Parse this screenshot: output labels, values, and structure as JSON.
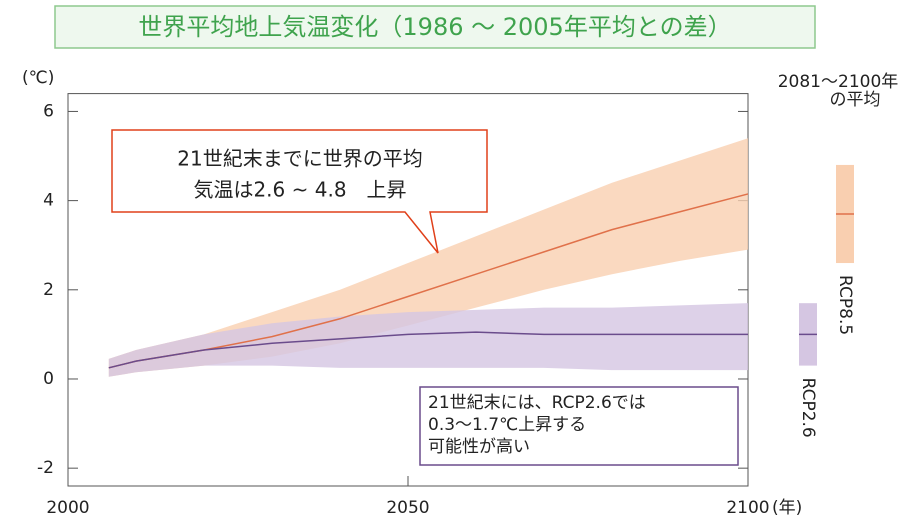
{
  "chart_data": {
    "type": "line",
    "title": "世界平均地上気温変化（1986 ～ 2005年平均との差）",
    "y_label": "(℃)",
    "x_label": "(年)",
    "xlim": [
      2000,
      2100
    ],
    "xticks": [
      2000,
      2050,
      2100
    ],
    "ylim": [
      -2.4,
      6.4
    ],
    "yticks": [
      -2,
      0,
      2,
      4,
      6
    ],
    "x": [
      2006,
      2010,
      2020,
      2030,
      2040,
      2050,
      2060,
      2070,
      2080,
      2090,
      2100
    ],
    "series": [
      {
        "name": "RCP8.5",
        "color": "#e0714a",
        "band_color": "#f9cfb0",
        "values": [
          0.25,
          0.4,
          0.65,
          0.95,
          1.35,
          1.85,
          2.35,
          2.85,
          3.35,
          3.75,
          4.15
        ],
        "lower": [
          0.05,
          0.15,
          0.3,
          0.5,
          0.8,
          1.2,
          1.6,
          2.0,
          2.35,
          2.65,
          2.9
        ],
        "upper": [
          0.45,
          0.65,
          1.0,
          1.5,
          2.0,
          2.6,
          3.2,
          3.8,
          4.4,
          4.9,
          5.4
        ],
        "period_range": [
          2.6,
          4.8
        ],
        "period_mean": 3.7
      },
      {
        "name": "RCP2.6",
        "color": "#6a4c8c",
        "band_color": "#d5c6e2",
        "values": [
          0.25,
          0.4,
          0.65,
          0.8,
          0.9,
          1.0,
          1.05,
          1.0,
          1.0,
          1.0,
          1.0
        ],
        "lower": [
          0.05,
          0.15,
          0.3,
          0.3,
          0.25,
          0.25,
          0.25,
          0.25,
          0.2,
          0.2,
          0.2
        ],
        "upper": [
          0.45,
          0.65,
          1.0,
          1.25,
          1.4,
          1.5,
          1.55,
          1.6,
          1.6,
          1.65,
          1.7
        ],
        "period_range": [
          0.3,
          1.7
        ],
        "period_mean": 1.0
      }
    ],
    "period_label": [
      "2081～2100年",
      "の平均"
    ],
    "annotations": [
      {
        "lines": [
          "21世紀末までに世界の平均",
          "気温は2.6 ~ 4.8　上昇"
        ]
      },
      {
        "lines": [
          "21世紀末には、RCP2.6では",
          "0.3～1.7℃上昇する",
          "可能性が高い"
        ]
      }
    ]
  }
}
